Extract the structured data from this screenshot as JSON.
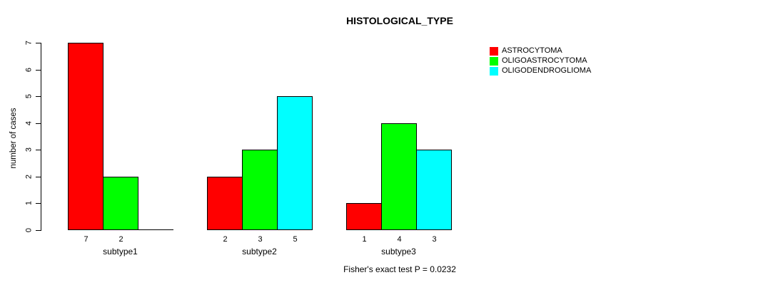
{
  "title": "HISTOLOGICAL_TYPE",
  "y_axis": {
    "label": "number of cases",
    "ticks": [
      0,
      1,
      2,
      3,
      4,
      5,
      6,
      7
    ]
  },
  "chart_data": {
    "type": "bar",
    "title": "HISTOLOGICAL_TYPE",
    "categories": [
      "subtype1",
      "subtype2",
      "subtype3"
    ],
    "series": [
      {
        "name": "ASTROCYTOMA",
        "color": "#ff0000",
        "values": [
          7,
          2,
          1
        ]
      },
      {
        "name": "OLIGOASTROCYTOMA",
        "color": "#00ff00",
        "values": [
          2,
          3,
          4
        ]
      },
      {
        "name": "OLIGODENDROGLIOMA",
        "color": "#00ffff",
        "values": [
          0,
          5,
          3
        ]
      }
    ],
    "bar_value_labels": [
      [
        "7",
        "2",
        ""
      ],
      [
        "2",
        "3",
        "5"
      ],
      [
        "1",
        "4",
        "3"
      ]
    ],
    "xlabel": "",
    "ylabel": "number of cases",
    "ylim": [
      0,
      7
    ],
    "y_ticks": [
      0,
      1,
      2,
      3,
      4,
      5,
      6,
      7
    ],
    "grid": false,
    "legend_position": "top-right",
    "legend_entries": [
      "ASTROCYTOMA",
      "OLIGOASTROCYTOMA",
      "OLIGODENDROGLIOMA"
    ],
    "annotation": "Fisher's exact test P = 0.0232",
    "bar_border_color": "#000000",
    "background": "#ffffff"
  }
}
